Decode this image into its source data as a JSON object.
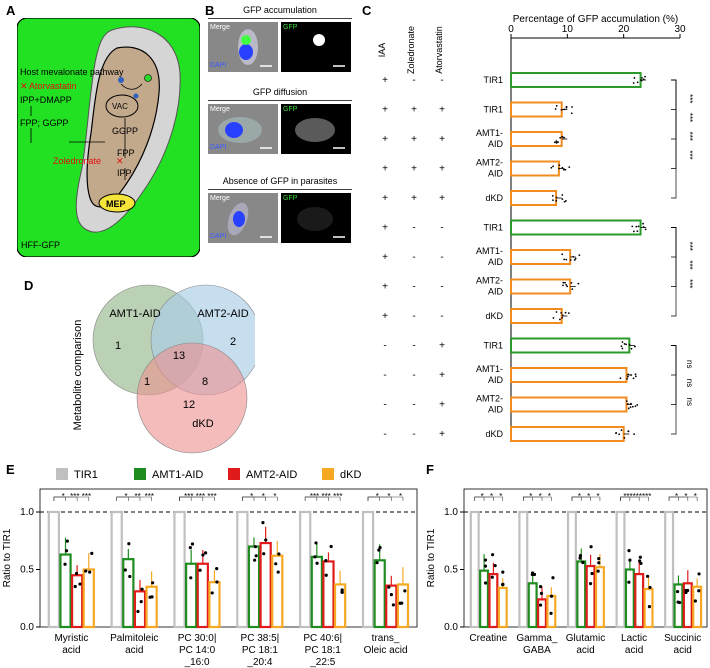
{
  "panels": {
    "a": "A",
    "b": "B",
    "c": "C",
    "d": "D",
    "e": "E",
    "f": "F"
  },
  "panel_a": {
    "host_pathway": "Host mevalonate pathway",
    "atorvastatin": "Atorvastatin",
    "ipp_dmapp": "IPP+DMAPP",
    "fpp_ggpp": "FPP; GGPP",
    "zoledronate": "Zoledronate",
    "ggpp": "GGPP",
    "fpp": "FPP",
    "ipp": "IPP",
    "vac": "VAC",
    "mep": "MEP",
    "hff": "HFF-GFP",
    "colors": {
      "green": "#22e022",
      "parasite": "#c3a98b",
      "mep": "#f5e43a",
      "red": "#e01010"
    }
  },
  "panel_b": {
    "rows": [
      {
        "title": "GFP accumulation",
        "merge": "Merge",
        "gfp": "GFP",
        "dapi": "DAPI"
      },
      {
        "title": "GFP diffusion",
        "merge": "Merge",
        "gfp": "GFP",
        "dapi": "DAPI"
      },
      {
        "title": "Absence of GFP in parasites",
        "merge": "Merge",
        "gfp": "GFP",
        "dapi": "DAPI"
      }
    ]
  },
  "panel_d": {
    "ylabel": "Metabolite comparison",
    "sets": [
      "AMT1-AID",
      "AMT2-AID",
      "dKD"
    ],
    "counts": {
      "amt1_only": "1",
      "amt2_only": "2",
      "dkd_only": "12",
      "all": "13",
      "amt1_dkd": "1",
      "amt2_dkd": "8"
    },
    "colors": {
      "amt1": "#a9c6a3",
      "amt2": "#a9cde6",
      "dkd": "#ee8f8f"
    }
  },
  "chart_data": [
    {
      "type": "bar",
      "panel": "C",
      "orientation": "horizontal",
      "title": "Percentage of GFP accumulation (%)",
      "xlim": [
        0,
        30
      ],
      "ticks": [
        "0",
        "10",
        "20",
        "30"
      ],
      "treatment_headers": [
        "IAA",
        "Zoledronate",
        "Atorvastatin"
      ],
      "rows": [
        {
          "label": "TIR1",
          "label2": "",
          "iaa": "+",
          "zol": "-",
          "ator": "-",
          "value": 23,
          "color": "green"
        },
        {
          "label": "TIR1",
          "label2": "",
          "iaa": "+",
          "zol": "+",
          "ator": "+",
          "value": 9,
          "color": "orange"
        },
        {
          "label": "AMT1-",
          "label2": "AID",
          "iaa": "+",
          "zol": "+",
          "ator": "+",
          "value": 9,
          "color": "orange"
        },
        {
          "label": "AMT2-",
          "label2": "AID",
          "iaa": "+",
          "zol": "+",
          "ator": "+",
          "value": 8.5,
          "color": "orange"
        },
        {
          "label": "dKD",
          "label2": "",
          "iaa": "+",
          "zol": "+",
          "ator": "+",
          "value": 8,
          "color": "orange"
        },
        {
          "label": "TIR1",
          "label2": "",
          "iaa": "+",
          "zol": "-",
          "ator": "-",
          "value": 23,
          "color": "green"
        },
        {
          "label": "AMT1-",
          "label2": "AID",
          "iaa": "+",
          "zol": "-",
          "ator": "-",
          "value": 10.5,
          "color": "orange"
        },
        {
          "label": "AMT2-",
          "label2": "AID",
          "iaa": "+",
          "zol": "-",
          "ator": "-",
          "value": 10.5,
          "color": "orange"
        },
        {
          "label": "dKD",
          "label2": "",
          "iaa": "+",
          "zol": "-",
          "ator": "-",
          "value": 9,
          "color": "orange"
        },
        {
          "label": "TIR1",
          "label2": "",
          "iaa": "-",
          "zol": "-",
          "ator": "+",
          "value": 21,
          "color": "green"
        },
        {
          "label": "AMT1-",
          "label2": "AID",
          "iaa": "-",
          "zol": "-",
          "ator": "+",
          "value": 20.5,
          "color": "orange"
        },
        {
          "label": "AMT2-",
          "label2": "AID",
          "iaa": "-",
          "zol": "-",
          "ator": "+",
          "value": 20.5,
          "color": "orange"
        },
        {
          "label": "dKD",
          "label2": "",
          "iaa": "-",
          "zol": "-",
          "ator": "+",
          "value": 20,
          "color": "orange"
        }
      ],
      "sig_labels": [
        "***",
        "***",
        "***",
        "***",
        "***",
        "***",
        "***",
        "ns",
        "ns",
        "ns"
      ]
    },
    {
      "type": "bar",
      "panel": "E",
      "ylabel": "Ratio to TIR1",
      "ylim": [
        0,
        1.2
      ],
      "yticks": [
        "0.0",
        "0.5",
        "1.0"
      ],
      "legend": [
        "TIR1",
        "AMT1-AID",
        "AMT2-AID",
        "dKD"
      ],
      "categories": [
        [
          "Myristic",
          "acid"
        ],
        [
          "Palmitoleic",
          "acid"
        ],
        [
          "PC 30:0|",
          "PC 14:0",
          "_16:0"
        ],
        [
          "PC 38:5|",
          "PC 18:1",
          "_20:4"
        ],
        [
          "PC 40:6|",
          "PC 18:1",
          "_22:5"
        ],
        [
          "trans_",
          "Oleic acid"
        ]
      ],
      "series": [
        {
          "name": "TIR1",
          "color": "#c0c0c0",
          "values": [
            1,
            1,
            1,
            1,
            1,
            1
          ]
        },
        {
          "name": "AMT1-AID",
          "color": "#1e8c1e",
          "values": [
            0.63,
            0.59,
            0.55,
            0.7,
            0.61,
            0.58
          ]
        },
        {
          "name": "AMT2-AID",
          "color": "#e01b1b",
          "values": [
            0.45,
            0.31,
            0.55,
            0.73,
            0.57,
            0.36
          ]
        },
        {
          "name": "dKD",
          "color": "#f6a823",
          "values": [
            0.5,
            0.35,
            0.39,
            0.62,
            0.37,
            0.37
          ]
        }
      ],
      "sig": [
        [
          "*",
          "***",
          "***"
        ],
        [
          "*",
          "**",
          "***"
        ],
        [
          "***",
          "***",
          "***"
        ],
        [
          "*",
          "*",
          "*"
        ],
        [
          "***",
          "***",
          "***"
        ],
        [
          "*",
          "*",
          "*"
        ]
      ]
    },
    {
      "type": "bar",
      "panel": "F",
      "ylabel": "Ratio to TIR1",
      "ylim": [
        0,
        1.2
      ],
      "yticks": [
        "0.0",
        "0.5",
        "1.0"
      ],
      "categories": [
        [
          "Creatine"
        ],
        [
          "Gamma_",
          "GABA"
        ],
        [
          "Glutamic",
          "acid"
        ],
        [
          "Lactic",
          "acid"
        ],
        [
          "Succinic",
          "acid"
        ]
      ],
      "series": [
        {
          "name": "TIR1",
          "color": "#c0c0c0",
          "values": [
            1,
            1,
            1,
            1,
            1
          ]
        },
        {
          "name": "AMT1-AID",
          "color": "#1e8c1e",
          "values": [
            0.49,
            0.38,
            0.57,
            0.5,
            0.37
          ]
        },
        {
          "name": "AMT2-AID",
          "color": "#e01b1b",
          "values": [
            0.46,
            0.24,
            0.53,
            0.46,
            0.38
          ]
        },
        {
          "name": "dKD",
          "color": "#f6a823",
          "values": [
            0.34,
            0.27,
            0.52,
            0.33,
            0.35
          ]
        }
      ],
      "sig": [
        [
          "*",
          "*",
          "*"
        ],
        [
          "*",
          "*",
          "*"
        ],
        [
          "*",
          "*",
          "*"
        ],
        [
          "***",
          "***",
          "***"
        ],
        [
          "*",
          "*",
          "*"
        ]
      ]
    }
  ]
}
